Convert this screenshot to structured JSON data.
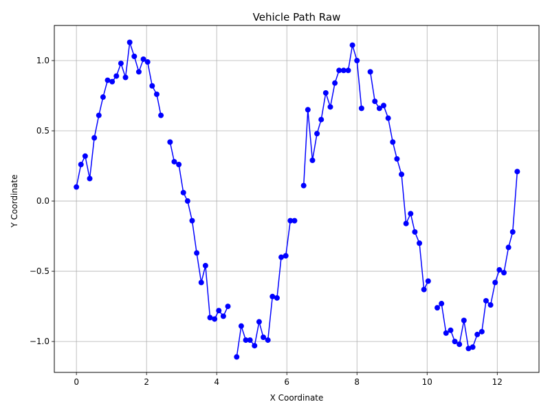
{
  "chart_data": {
    "type": "line",
    "title": "Vehicle Path Raw",
    "xlabel": "X Coordinate",
    "ylabel": "Y Coordinate",
    "xlim": [
      -0.63,
      13.19
    ],
    "ylim": [
      -1.22,
      1.25
    ],
    "x_ticks": [
      0,
      2,
      4,
      6,
      8,
      10,
      12
    ],
    "x_tick_labels": [
      "0",
      "2",
      "4",
      "6",
      "8",
      "10",
      "12"
    ],
    "y_ticks": [
      -1.0,
      -0.5,
      0.0,
      0.5,
      1.0
    ],
    "y_tick_labels": [
      "−1.0",
      "−0.5",
      "0.0",
      "0.5",
      "1.0"
    ],
    "grid": true,
    "series": [
      {
        "color": "#0000ff",
        "marker": "circle",
        "segments": [
          [
            [
              0.0,
              0.1
            ],
            [
              0.13,
              0.26
            ],
            [
              0.25,
              0.32
            ],
            [
              0.38,
              0.16
            ],
            [
              0.51,
              0.45
            ],
            [
              0.64,
              0.61
            ],
            [
              0.76,
              0.74
            ],
            [
              0.89,
              0.86
            ],
            [
              1.02,
              0.85
            ],
            [
              1.14,
              0.89
            ],
            [
              1.27,
              0.98
            ],
            [
              1.4,
              0.88
            ],
            [
              1.52,
              1.13
            ],
            [
              1.65,
              1.03
            ],
            [
              1.78,
              0.92
            ],
            [
              1.91,
              1.01
            ],
            [
              2.03,
              0.99
            ],
            [
              2.16,
              0.82
            ],
            [
              2.29,
              0.76
            ],
            [
              2.41,
              0.61
            ]
          ],
          [
            [
              2.67,
              0.42
            ],
            [
              2.79,
              0.28
            ],
            [
              2.92,
              0.26
            ],
            [
              3.05,
              0.06
            ],
            [
              3.17,
              0.0
            ],
            [
              3.3,
              -0.14
            ],
            [
              3.43,
              -0.37
            ],
            [
              3.56,
              -0.58
            ],
            [
              3.68,
              -0.46
            ],
            [
              3.81,
              -0.83
            ],
            [
              3.94,
              -0.84
            ],
            [
              4.06,
              -0.78
            ],
            [
              4.19,
              -0.82
            ],
            [
              4.32,
              -0.75
            ]
          ],
          [
            [
              4.57,
              -1.11
            ],
            [
              4.7,
              -0.89
            ],
            [
              4.83,
              -0.99
            ],
            [
              4.95,
              -0.99
            ],
            [
              5.08,
              -1.03
            ],
            [
              5.21,
              -0.86
            ],
            [
              5.33,
              -0.97
            ],
            [
              5.46,
              -0.99
            ],
            [
              5.59,
              -0.68
            ],
            [
              5.72,
              -0.69
            ],
            [
              5.84,
              -0.4
            ],
            [
              5.97,
              -0.39
            ],
            [
              6.1,
              -0.14
            ],
            [
              6.22,
              -0.14
            ]
          ],
          [
            [
              6.48,
              0.11
            ],
            [
              6.6,
              0.65
            ],
            [
              6.73,
              0.29
            ],
            [
              6.86,
              0.48
            ],
            [
              6.98,
              0.58
            ],
            [
              7.11,
              0.77
            ],
            [
              7.24,
              0.67
            ],
            [
              7.37,
              0.84
            ],
            [
              7.49,
              0.93
            ],
            [
              7.62,
              0.93
            ],
            [
              7.75,
              0.93
            ],
            [
              7.87,
              1.11
            ],
            [
              8.0,
              1.0
            ],
            [
              8.13,
              0.66
            ]
          ],
          [
            [
              8.38,
              0.92
            ],
            [
              8.51,
              0.71
            ],
            [
              8.64,
              0.66
            ],
            [
              8.76,
              0.68
            ],
            [
              8.89,
              0.59
            ],
            [
              9.02,
              0.42
            ],
            [
              9.14,
              0.3
            ],
            [
              9.27,
              0.19
            ],
            [
              9.4,
              -0.16
            ],
            [
              9.53,
              -0.09
            ],
            [
              9.65,
              -0.22
            ],
            [
              9.78,
              -0.3
            ],
            [
              9.91,
              -0.63
            ],
            [
              10.03,
              -0.57
            ]
          ],
          [
            [
              10.29,
              -0.76
            ],
            [
              10.41,
              -0.73
            ],
            [
              10.54,
              -0.94
            ],
            [
              10.67,
              -0.92
            ],
            [
              10.79,
              -1.0
            ],
            [
              10.92,
              -1.02
            ],
            [
              11.05,
              -0.85
            ],
            [
              11.18,
              -1.05
            ],
            [
              11.3,
              -1.04
            ],
            [
              11.43,
              -0.95
            ],
            [
              11.56,
              -0.93
            ],
            [
              11.68,
              -0.71
            ],
            [
              11.81,
              -0.74
            ],
            [
              11.94,
              -0.58
            ],
            [
              12.06,
              -0.49
            ],
            [
              12.19,
              -0.51
            ],
            [
              12.32,
              -0.33
            ],
            [
              12.44,
              -0.22
            ],
            [
              12.57,
              0.21
            ]
          ]
        ]
      }
    ]
  }
}
